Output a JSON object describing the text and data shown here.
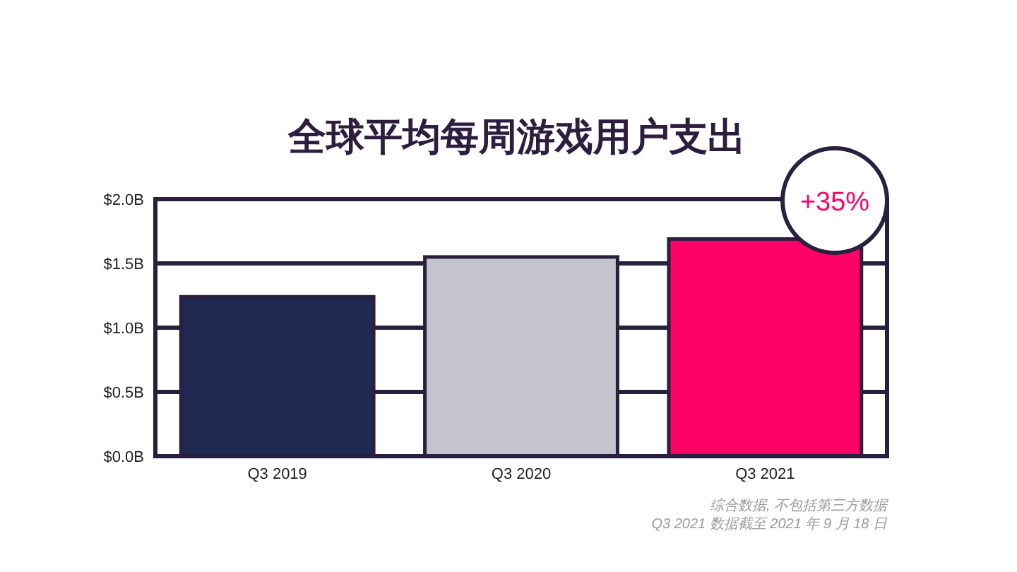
{
  "chart_data": {
    "type": "bar",
    "title": "全球平均每周游戏用户支出",
    "categories": [
      "Q3 2019",
      "Q3 2020",
      "Q3 2021"
    ],
    "values": [
      1.24,
      1.55,
      1.69
    ],
    "colors": [
      "#1f2a52",
      "#c3c4ce",
      "#ff0066"
    ],
    "ylim": [
      0,
      2.0
    ],
    "yticks": [
      {
        "value": 0,
        "label": "$0.0B"
      },
      {
        "value": 0.5,
        "label": "$0.5B"
      },
      {
        "value": 1.0,
        "label": "$1.0B"
      },
      {
        "value": 1.5,
        "label": "$1.5B"
      },
      {
        "value": 2.0,
        "label": "$2.0B"
      }
    ],
    "grid": "y",
    "annotations": [
      "+35%",
      "综合数据, 不包括第三方数据",
      "Q3 2021 数据截至 2021 年 9 月 18 日"
    ]
  }
}
